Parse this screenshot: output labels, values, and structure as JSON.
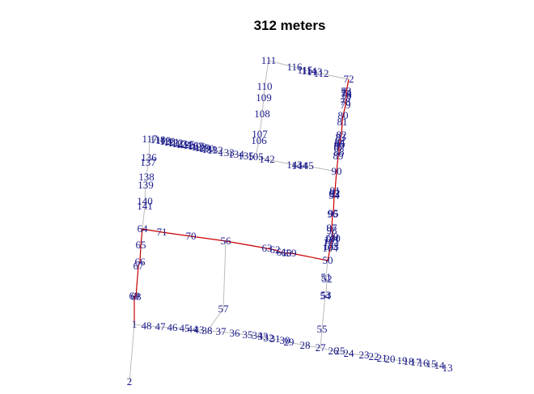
{
  "title": "312 meters",
  "colors": {
    "edge": "#bbbbbb",
    "path": "#cc0000",
    "label": "#1a1a8c",
    "title": "#000000"
  },
  "labels": [
    "2",
    "1",
    "48",
    "47",
    "46",
    "45",
    "44",
    "43",
    "38",
    "37",
    "36",
    "35",
    "34",
    "33",
    "32",
    "31",
    "30",
    "29",
    "28",
    "27",
    "26",
    "25",
    "24",
    "23",
    "22",
    "21",
    "20",
    "19",
    "18",
    "17",
    "16",
    "15",
    "14",
    "13",
    "69",
    "68",
    "67",
    "66",
    "65",
    "64",
    "71",
    "70",
    "56",
    "57",
    "63",
    "62",
    "61",
    "60",
    "59",
    "50",
    "51",
    "52",
    "53",
    "54",
    "55",
    "104",
    "103",
    "102",
    "101",
    "100",
    "99",
    "98",
    "97",
    "96",
    "95",
    "94",
    "93",
    "92",
    "91",
    "90",
    "89",
    "88",
    "87",
    "86",
    "85",
    "84",
    "83",
    "82",
    "81",
    "80",
    "79",
    "78",
    "77",
    "76",
    "75",
    "74",
    "73",
    "72",
    "111",
    "112",
    "113",
    "114",
    "115",
    "116",
    "110",
    "109",
    "108",
    "107",
    "106",
    "105",
    "142",
    "143",
    "144",
    "145",
    "141",
    "140",
    "139",
    "138",
    "137",
    "136",
    "117",
    "118",
    "119",
    "120",
    "121",
    "122",
    "123",
    "124",
    "125",
    "126",
    "127",
    "128",
    "129",
    "130",
    "131",
    "132",
    "133",
    "134",
    "135"
  ]
}
